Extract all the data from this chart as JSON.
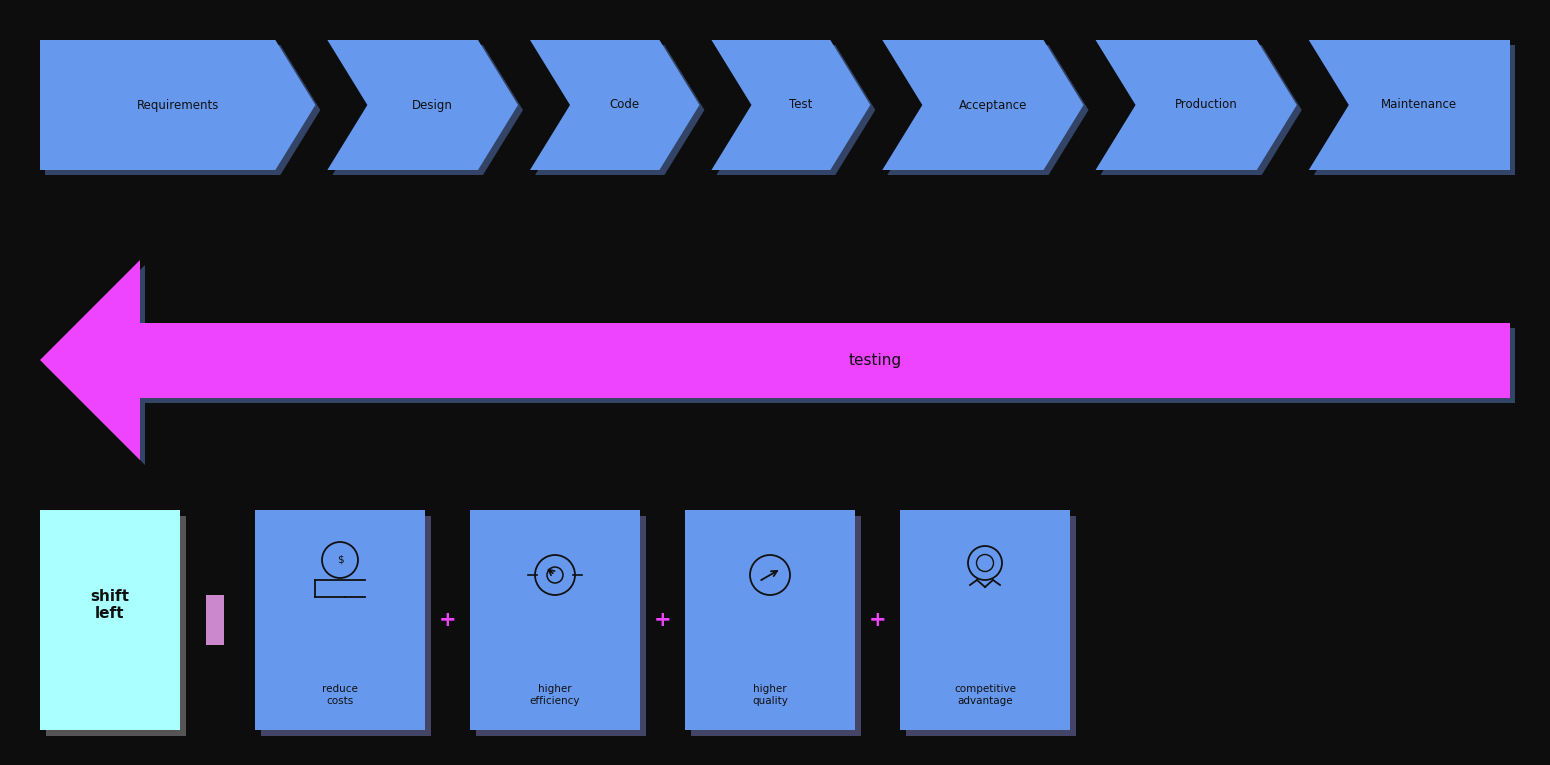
{
  "background_color": "#0d0d0d",
  "arrow_stages": [
    "Requirements",
    "Design",
    "Code",
    "Test",
    "Acceptance",
    "Production",
    "Maintenance"
  ],
  "arrow_blue": "#6699ee",
  "arrow_shadow": "#334466",
  "magenta_color": "#ee44ff",
  "magenta_light": "#dd88ff",
  "testing_label": "testing",
  "shift_left_text": "shift\nleft",
  "shift_left_bg": "#aaffff",
  "bottom_box_color": "#6699ee",
  "bottom_box_shadow": "#334466",
  "bottom_labels": [
    "reduce\ncosts",
    "higher\nefficiency",
    "higher\nquality",
    "competitive\nadvantage"
  ],
  "plus_color": "#ee44ff",
  "equals_color": "#cc88cc",
  "text_dark": "#111111",
  "text_white": "#ffffff"
}
